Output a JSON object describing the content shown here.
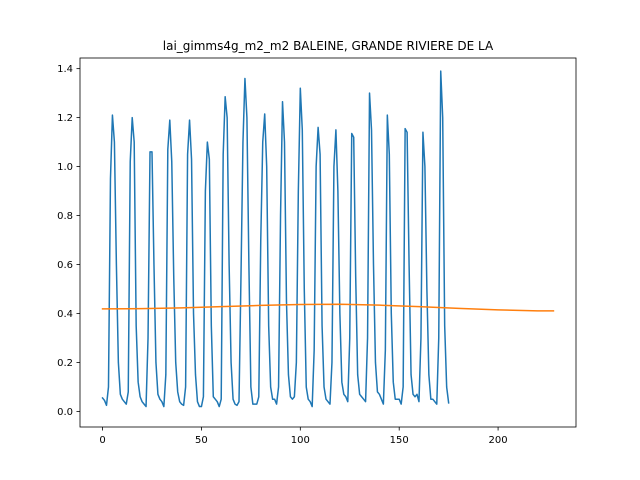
{
  "chart_data": {
    "type": "line",
    "title": "lai_gimms4g_m2_m2 BALEINE, GRANDE RIVIERE DE LA",
    "xlabel": "",
    "ylabel": "",
    "xlim": [
      -11.4,
      239.4
    ],
    "ylim": [
      -0.0635,
      1.4435
    ],
    "x_ticks": [
      0,
      50,
      100,
      150,
      200
    ],
    "x_tick_labels": [
      "0",
      "50",
      "100",
      "150",
      "200"
    ],
    "y_ticks": [
      0.0,
      0.2,
      0.4,
      0.6,
      0.8,
      1.0,
      1.2,
      1.4
    ],
    "y_tick_labels": [
      "0.0",
      "0.2",
      "0.4",
      "0.6",
      "0.8",
      "1.0",
      "1.2",
      "1.4"
    ],
    "grid": false,
    "legend": "none",
    "series": [
      {
        "color": "#1f77b4",
        "x_start": 0,
        "values": [
          0.055,
          0.045,
          0.025,
          0.1,
          0.95,
          1.21,
          1.1,
          0.6,
          0.2,
          0.07,
          0.05,
          0.04,
          0.03,
          0.08,
          1.02,
          1.2,
          1.1,
          0.35,
          0.12,
          0.06,
          0.04,
          0.03,
          0.02,
          0.3,
          1.06,
          1.06,
          0.6,
          0.2,
          0.07,
          0.05,
          0.04,
          0.02,
          0.15,
          1.07,
          1.19,
          1.02,
          0.55,
          0.2,
          0.08,
          0.04,
          0.03,
          0.025,
          0.1,
          1.05,
          1.19,
          1.03,
          0.4,
          0.15,
          0.04,
          0.02,
          0.02,
          0.06,
          0.9,
          1.1,
          1.03,
          0.35,
          0.06,
          0.05,
          0.04,
          0.02,
          0.05,
          1.05,
          1.285,
          1.2,
          0.6,
          0.2,
          0.05,
          0.03,
          0.025,
          0.04,
          0.55,
          1.1,
          1.36,
          1.2,
          0.6,
          0.1,
          0.03,
          0.03,
          0.03,
          0.06,
          0.7,
          1.1,
          1.215,
          1.0,
          0.35,
          0.1,
          0.05,
          0.05,
          0.03,
          0.1,
          0.8,
          1.265,
          1.1,
          0.45,
          0.15,
          0.06,
          0.05,
          0.06,
          0.2,
          0.9,
          1.32,
          1.15,
          0.5,
          0.1,
          0.05,
          0.04,
          0.02,
          0.25,
          1.0,
          1.16,
          1.05,
          0.35,
          0.1,
          0.05,
          0.04,
          0.03,
          0.2,
          1.0,
          1.15,
          0.9,
          0.4,
          0.12,
          0.07,
          0.06,
          0.04,
          0.3,
          1.135,
          1.12,
          0.55,
          0.15,
          0.07,
          0.06,
          0.05,
          0.04,
          0.3,
          1.3,
          1.15,
          0.6,
          0.2,
          0.08,
          0.07,
          0.05,
          0.03,
          0.25,
          1.21,
          1.05,
          0.4,
          0.12,
          0.05,
          0.05,
          0.05,
          0.03,
          0.1,
          1.155,
          1.14,
          0.6,
          0.15,
          0.07,
          0.06,
          0.07,
          0.04,
          0.3,
          1.14,
          1.0,
          0.5,
          0.15,
          0.05,
          0.05,
          0.04,
          0.03,
          0.3,
          1.39,
          1.2,
          0.35,
          0.1,
          0.035
        ]
      },
      {
        "color": "#ff7f0e",
        "x": [
          0,
          20,
          40,
          60,
          80,
          100,
          120,
          140,
          160,
          180,
          200,
          220,
          228
        ],
        "values": [
          0.419,
          0.42,
          0.423,
          0.428,
          0.433,
          0.437,
          0.438,
          0.434,
          0.428,
          0.421,
          0.415,
          0.411,
          0.411
        ]
      }
    ]
  }
}
